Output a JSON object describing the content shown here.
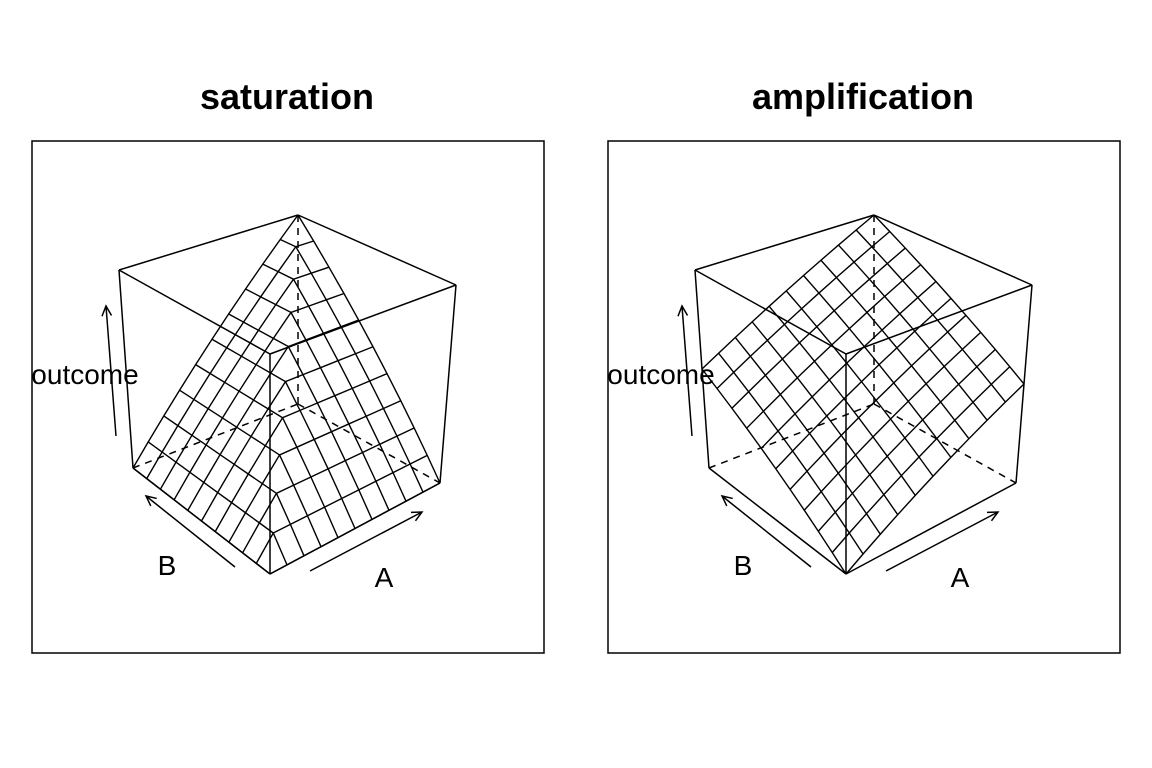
{
  "chart_data": [
    {
      "type": "surface",
      "title": "saturation",
      "xlabel": "A",
      "ylabel": "B",
      "zlabel": "outcome",
      "surface": "min(A,B)",
      "grid_divisions": 10,
      "box": true,
      "ticks": false
    },
    {
      "type": "surface",
      "title": "amplification",
      "xlabel": "A",
      "ylabel": "B",
      "zlabel": "outcome",
      "surface": "(A+B)/2",
      "grid_divisions": 10,
      "box": true,
      "ticks": false
    }
  ]
}
